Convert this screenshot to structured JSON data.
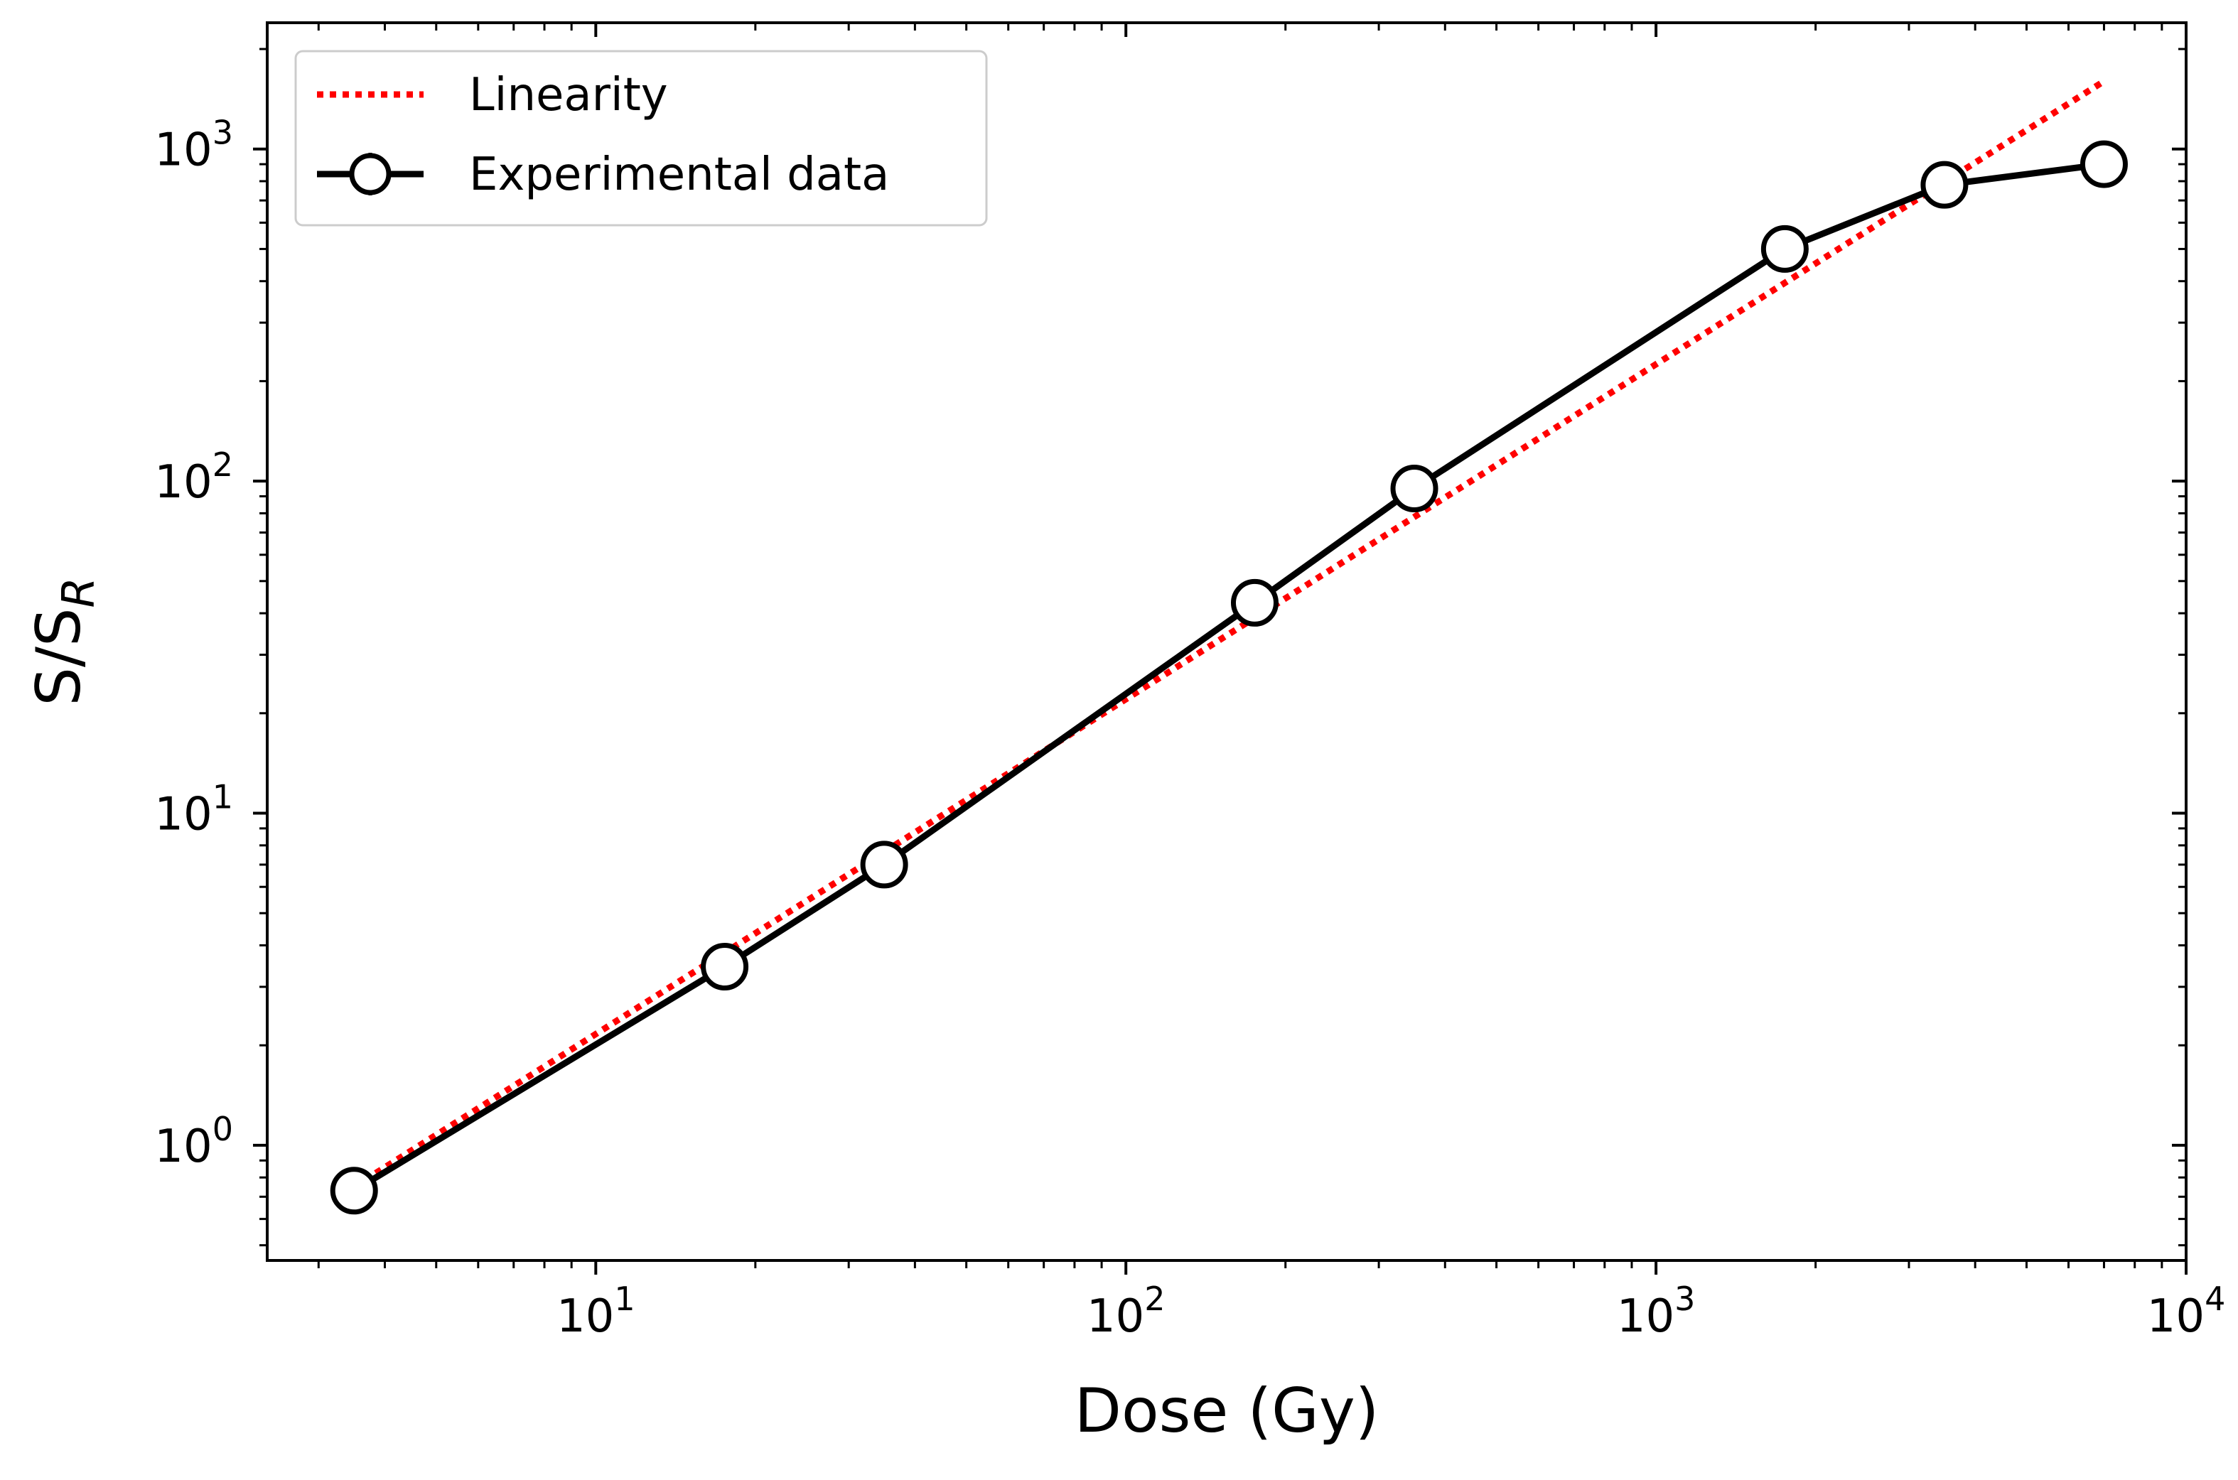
{
  "chart_data": {
    "type": "line",
    "xscale": "log",
    "yscale": "log",
    "xlim": [
      2.4,
      10000
    ],
    "ylim": [
      0.45,
      2400
    ],
    "xlabel": "Dose (Gy)",
    "ylabel": "S/S",
    "ylabel_subscript": "R",
    "x_major_ticks": [
      {
        "value": 10,
        "base": "10",
        "exponent": "1"
      },
      {
        "value": 100,
        "base": "10",
        "exponent": "2"
      },
      {
        "value": 1000,
        "base": "10",
        "exponent": "3"
      },
      {
        "value": 10000,
        "base": "10",
        "exponent": "4"
      }
    ],
    "y_major_ticks": [
      {
        "value": 1,
        "base": "10",
        "exponent": "0"
      },
      {
        "value": 10,
        "base": "10",
        "exponent": "1"
      },
      {
        "value": 100,
        "base": "10",
        "exponent": "2"
      },
      {
        "value": 1000,
        "base": "10",
        "exponent": "3"
      }
    ],
    "legend": {
      "location": "upper-left",
      "entries": [
        {
          "label": "Linearity",
          "style": "dotted",
          "color": "#ff0000"
        },
        {
          "label": "Experimental data",
          "style": "solid-with-open-circles",
          "color": "#000000"
        }
      ]
    },
    "series": [
      {
        "name": "Linearity",
        "color": "#ff0000",
        "style": "dotted",
        "x": [
          3.5,
          7000
        ],
        "y": [
          0.75,
          1600
        ]
      },
      {
        "name": "Experimental data",
        "color": "#000000",
        "style": "solid",
        "marker": "open-circle",
        "x": [
          3.5,
          17.5,
          35,
          175,
          350,
          1750,
          3500,
          7000
        ],
        "y": [
          0.73,
          3.45,
          7.0,
          43,
          95,
          500,
          780,
          900
        ]
      }
    ]
  }
}
